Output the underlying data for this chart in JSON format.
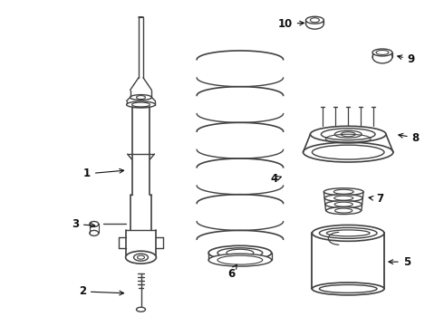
{
  "bg_color": "#ffffff",
  "line_color": "#404040",
  "label_color": "#111111",
  "fig_width": 4.9,
  "fig_height": 3.6,
  "dpi": 100
}
